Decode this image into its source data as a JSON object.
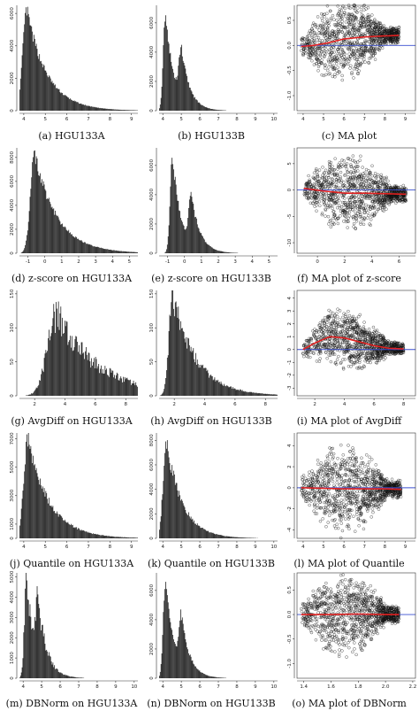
{
  "chart_data": [
    {
      "id": "a",
      "type": "bar",
      "caption": "(a) HGU133A",
      "x_ticks": [
        "4",
        "5",
        "6",
        "7",
        "8",
        "9"
      ],
      "y_ticks": [
        "0",
        "2000",
        "4000",
        "6000"
      ],
      "xlim": [
        3.8,
        9.3
      ],
      "ylim": [
        0,
        6500
      ],
      "peaks": [
        {
          "center": 4.15,
          "height": 6200,
          "width": 0.55
        }
      ],
      "tail": 0.7
    },
    {
      "id": "b",
      "type": "bar",
      "caption": "(b) HGU133B",
      "x_ticks": [
        "4",
        "5",
        "6",
        "7",
        "8",
        "9",
        "10"
      ],
      "y_ticks": [
        "0",
        "2000",
        "4000",
        "6000"
      ],
      "xlim": [
        3.8,
        10.2
      ],
      "ylim": [
        0,
        7200
      ],
      "peaks": [
        {
          "center": 4.15,
          "height": 6700,
          "width": 0.35
        },
        {
          "center": 5.0,
          "height": 3400,
          "width": 0.35
        }
      ],
      "tail": 0.3
    },
    {
      "id": "c",
      "type": "scatter",
      "caption": "(c) MA plot",
      "x_ticks": [
        "4",
        "5",
        "6",
        "7",
        "8",
        "9"
      ],
      "y_ticks": [
        "-1.0",
        "-0.5",
        "0.0",
        "0.5"
      ],
      "xlim": [
        3.7,
        9.5
      ],
      "ylim": [
        -1.3,
        0.8
      ],
      "trend": [
        [
          3.9,
          -0.02
        ],
        [
          4.5,
          0.0
        ],
        [
          5.2,
          0.05
        ],
        [
          6.0,
          0.13
        ],
        [
          7.0,
          0.17
        ],
        [
          8.0,
          0.19
        ],
        [
          8.7,
          0.2
        ]
      ],
      "spread": 0.75,
      "ref": 0.0
    },
    {
      "id": "d",
      "type": "bar",
      "caption": "(d) z-score on HGU133A",
      "x_ticks": [
        "-1",
        "0",
        "1",
        "2",
        "3",
        "4",
        "5"
      ],
      "y_ticks": [
        "0",
        "2000",
        "4000",
        "6000",
        "8000"
      ],
      "xlim": [
        -1.5,
        5.5
      ],
      "ylim": [
        0,
        8800
      ],
      "peaks": [
        {
          "center": -0.6,
          "height": 8300,
          "width": 0.7
        }
      ],
      "tail": 0.9
    },
    {
      "id": "e",
      "type": "bar",
      "caption": "(e) z-score on HGU133B",
      "x_ticks": [
        "-1",
        "0",
        "1",
        "2",
        "3",
        "4",
        "5"
      ],
      "y_ticks": [
        "0",
        "2000",
        "4000",
        "6000"
      ],
      "xlim": [
        -1.5,
        5.5
      ],
      "ylim": [
        0,
        7200
      ],
      "peaks": [
        {
          "center": -0.7,
          "height": 6600,
          "width": 0.4
        },
        {
          "center": 0.4,
          "height": 3300,
          "width": 0.4
        }
      ],
      "tail": 0.3
    },
    {
      "id": "f",
      "type": "scatter",
      "caption": "(f) MA plot of z-score",
      "x_ticks": [
        "0",
        "2",
        "4",
        "6"
      ],
      "y_ticks": [
        "-10",
        "-5",
        "0",
        "5"
      ],
      "xlim": [
        -1.5,
        7.2
      ],
      "ylim": [
        -12,
        8
      ],
      "trend": [
        [
          -1.0,
          0.3
        ],
        [
          0.5,
          -0.2
        ],
        [
          2.0,
          -0.6
        ],
        [
          3.5,
          -0.6
        ],
        [
          5.0,
          -0.7
        ],
        [
          6.5,
          -0.8
        ]
      ],
      "spread": 7.0,
      "ref": 0.0
    },
    {
      "id": "g",
      "type": "bar",
      "caption": "(g) AvgDiff on HGU133A",
      "x_ticks": [
        "2",
        "4",
        "6",
        "8"
      ],
      "y_ticks": [
        "0",
        "50",
        "100",
        "150"
      ],
      "xlim": [
        1.0,
        8.8
      ],
      "ylim": [
        0,
        155
      ],
      "peaks": [
        {
          "center": 3.5,
          "height": 120,
          "width": 1.8
        }
      ],
      "tail": 0.5,
      "noise": 0.45
    },
    {
      "id": "h",
      "type": "bar",
      "caption": "(h) AvgDiff on HGU133B",
      "x_ticks": [
        "2",
        "4",
        "6",
        "8"
      ],
      "y_ticks": [
        "0",
        "50",
        "100",
        "150"
      ],
      "xlim": [
        1.0,
        8.8
      ],
      "ylim": [
        0,
        155
      ],
      "peaks": [
        {
          "center": 1.9,
          "height": 148,
          "width": 0.7
        }
      ],
      "tail": 1.2,
      "noise": 0.3
    },
    {
      "id": "i",
      "type": "scatter",
      "caption": "(i) MA plot of AvgDiff",
      "x_ticks": [
        "2",
        "4",
        "6",
        "8"
      ],
      "y_ticks": [
        "-3",
        "-2",
        "-1",
        "0",
        "1",
        "2",
        "3",
        "4"
      ],
      "xlim": [
        0.8,
        8.8
      ],
      "ylim": [
        -3.6,
        4.6
      ],
      "trend": [
        [
          1.2,
          0.0
        ],
        [
          2.0,
          0.5
        ],
        [
          3.0,
          1.0
        ],
        [
          4.0,
          0.9
        ],
        [
          5.0,
          0.6
        ],
        [
          6.0,
          0.3
        ],
        [
          7.0,
          0.1
        ],
        [
          8.0,
          0.05
        ]
      ],
      "spread": 2.2,
      "ref": 0.0
    },
    {
      "id": "j",
      "type": "bar",
      "caption": "(j) Quantile on HGU133A",
      "x_ticks": [
        "4",
        "5",
        "6",
        "7",
        "8",
        "9"
      ],
      "y_ticks": [
        "0",
        "1000",
        "3000",
        "5000",
        "7000"
      ],
      "xlim": [
        3.8,
        9.3
      ],
      "ylim": [
        0,
        7400
      ],
      "peaks": [
        {
          "center": 4.2,
          "height": 7000,
          "width": 0.55
        }
      ],
      "tail": 0.8,
      "noise": 0.2
    },
    {
      "id": "k",
      "type": "bar",
      "caption": "(k) Quantile on HGU133B",
      "x_ticks": [
        "4",
        "5",
        "6",
        "7",
        "8",
        "9",
        "10"
      ],
      "y_ticks": [
        "0",
        "2000",
        "4000",
        "6000",
        "8000"
      ],
      "xlim": [
        3.8,
        10.2
      ],
      "ylim": [
        0,
        8600
      ],
      "peaks": [
        {
          "center": 4.2,
          "height": 8000,
          "width": 0.5
        }
      ],
      "tail": 0.7,
      "noise": 0.2
    },
    {
      "id": "l",
      "type": "scatter",
      "caption": "(l) MA plot of Quantile",
      "x_ticks": [
        "4",
        "5",
        "6",
        "7",
        "8",
        "9"
      ],
      "y_ticks": [
        "-4",
        "-2",
        "0",
        "2",
        "4"
      ],
      "xlim": [
        3.7,
        9.5
      ],
      "ylim": [
        -4.8,
        5.2
      ],
      "trend": [
        [
          3.9,
          0.0
        ],
        [
          5.0,
          -0.05
        ],
        [
          6.0,
          -0.1
        ],
        [
          7.0,
          -0.1
        ],
        [
          8.0,
          -0.1
        ],
        [
          8.8,
          -0.15
        ]
      ],
      "spread": 4.0,
      "ref": 0.0
    },
    {
      "id": "m",
      "type": "bar",
      "caption": "(m) DBNorm on HGU133A",
      "x_ticks": [
        "4",
        "5",
        "6",
        "7",
        "8",
        "9",
        "10"
      ],
      "y_ticks": [
        "0",
        "1000",
        "2000",
        "3000",
        "4000",
        "5000"
      ],
      "xlim": [
        3.8,
        10.2
      ],
      "ylim": [
        0,
        5200
      ],
      "peaks": [
        {
          "center": 4.2,
          "height": 4900,
          "width": 0.35
        },
        {
          "center": 4.8,
          "height": 2800,
          "width": 0.35
        }
      ],
      "tail": 0.3,
      "noise": 0.35
    },
    {
      "id": "n",
      "type": "bar",
      "caption": "(n) DBNorm on HGU133B",
      "x_ticks": [
        "4",
        "5",
        "6",
        "7",
        "8",
        "9",
        "10"
      ],
      "y_ticks": [
        "0",
        "2000",
        "4000",
        "6000"
      ],
      "xlim": [
        3.8,
        10.2
      ],
      "ylim": [
        0,
        7200
      ],
      "peaks": [
        {
          "center": 4.15,
          "height": 6700,
          "width": 0.35
        },
        {
          "center": 5.0,
          "height": 3400,
          "width": 0.35
        }
      ],
      "tail": 0.3
    },
    {
      "id": "o",
      "type": "scatter",
      "caption": "(o) MA plot of DBNorm",
      "x_ticks": [
        "1.4",
        "1.6",
        "1.8",
        "2.0",
        "2.2"
      ],
      "y_ticks": [
        "-1.0",
        "-0.5",
        "0.0",
        "0.5"
      ],
      "xlim": [
        1.35,
        2.22
      ],
      "ylim": [
        -1.3,
        0.85
      ],
      "trend": [
        [
          1.38,
          0.0
        ],
        [
          1.6,
          0.0
        ],
        [
          1.8,
          0.01
        ],
        [
          2.0,
          0.0
        ],
        [
          2.1,
          0.0
        ]
      ],
      "spread": 0.8,
      "ref": 0.0
    }
  ]
}
